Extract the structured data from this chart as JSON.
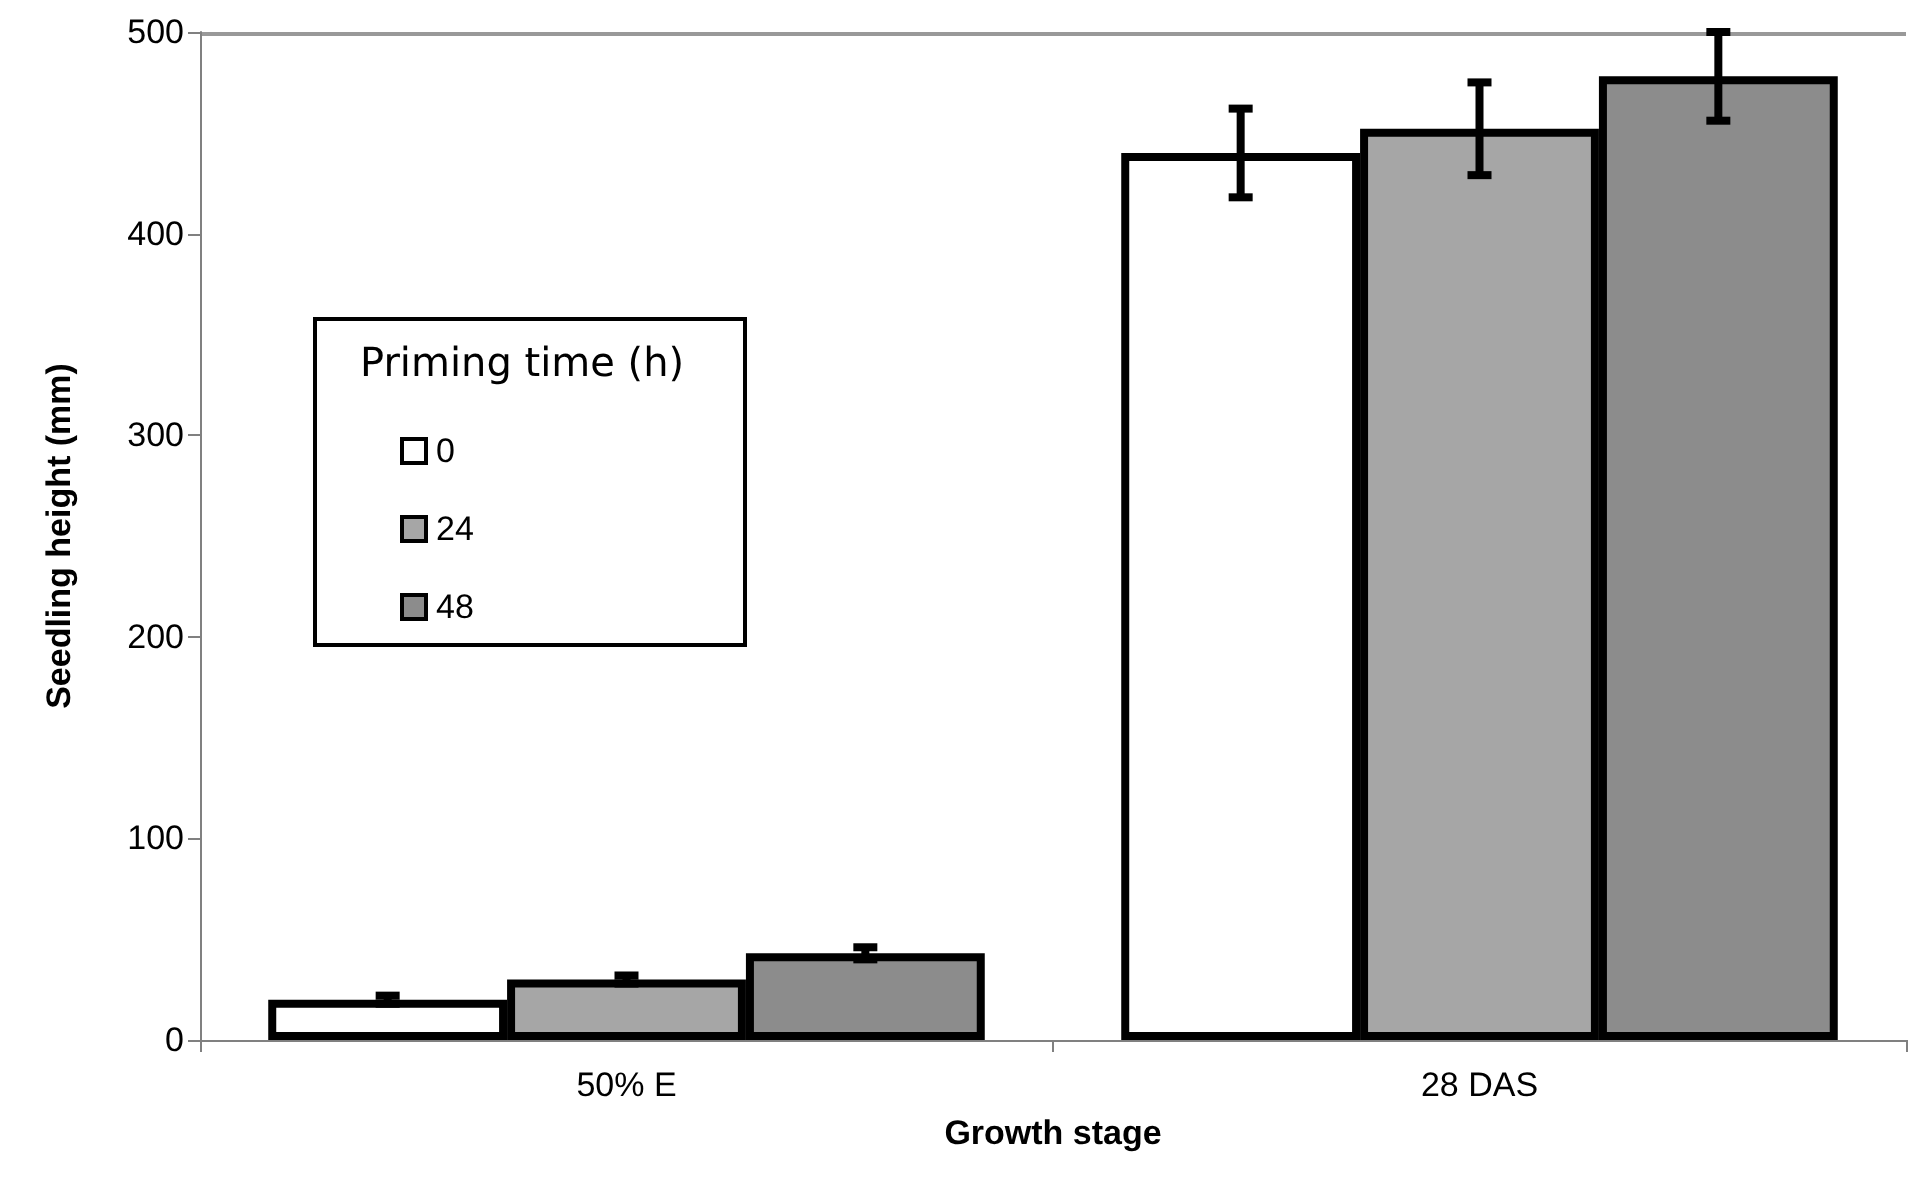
{
  "chart_data": {
    "type": "bar",
    "xlabel": "Growth stage",
    "ylabel": "Seedling height (mm)",
    "legend_title": "Priming time (h)",
    "categories": [
      "50% E",
      "28 DAS"
    ],
    "series": [
      {
        "name": "0",
        "color": "#ffffff",
        "values": [
          20,
          440
        ],
        "errors": [
          2,
          22
        ]
      },
      {
        "name": "24",
        "color": "#a6a6a6",
        "values": [
          30,
          452
        ],
        "errors": [
          2,
          23
        ]
      },
      {
        "name": "48",
        "color": "#8c8c8c",
        "values": [
          43,
          478
        ],
        "errors": [
          3,
          22
        ]
      }
    ],
    "ylim": [
      0,
      500
    ],
    "yticks": [
      0,
      100,
      200,
      300,
      400,
      500
    ],
    "grid": false,
    "legend": "left"
  }
}
